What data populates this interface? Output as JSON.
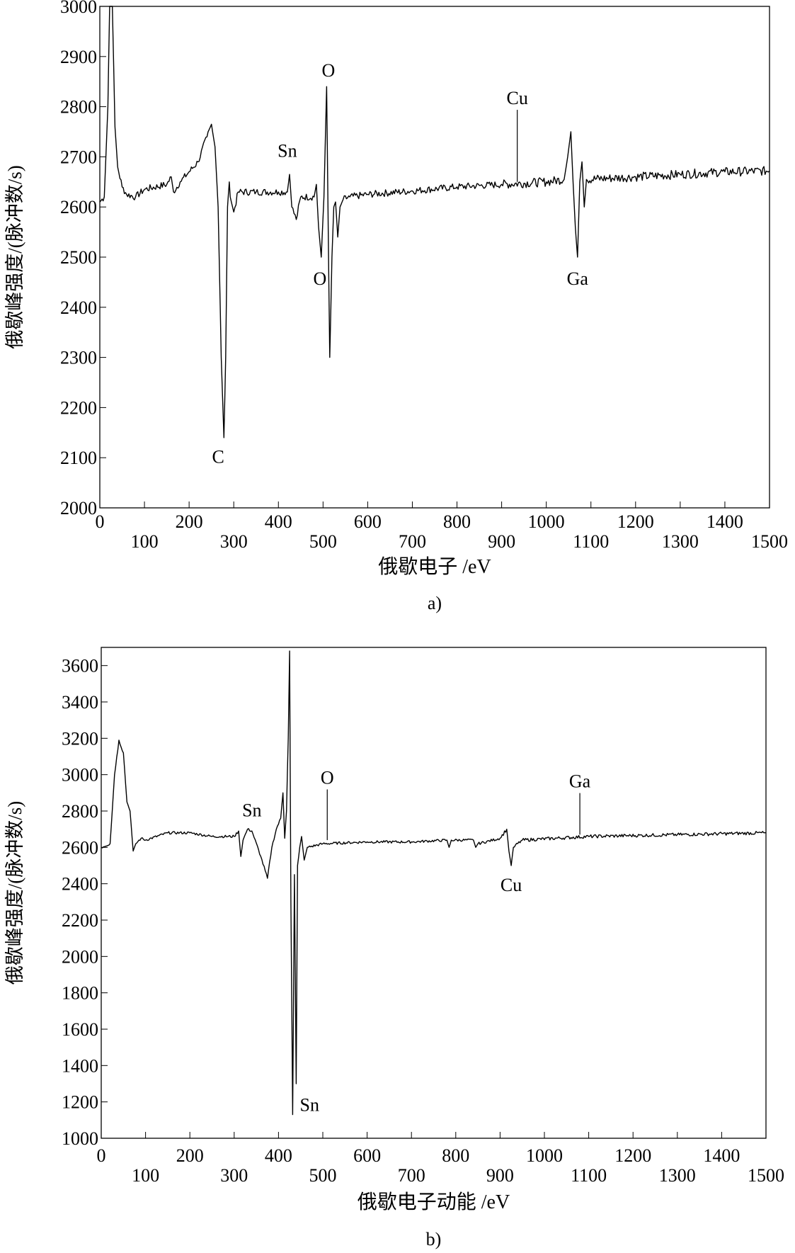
{
  "chart_data": [
    {
      "type": "line",
      "caption": "a)",
      "xlabel": "俄歇电子 /eV",
      "ylabel": "俄歇峰强度/(脉冲数/s)",
      "xlim": [
        0,
        1500
      ],
      "ylim": [
        2000,
        3000
      ],
      "xticks": [
        0,
        100,
        200,
        300,
        400,
        500,
        600,
        700,
        800,
        900,
        1000,
        1100,
        1200,
        1300,
        1400,
        1500
      ],
      "yticks": [
        2000,
        2100,
        2200,
        2300,
        2400,
        2500,
        2600,
        2700,
        2800,
        2900,
        3000
      ],
      "grid": false,
      "series": [
        {
          "x": [
            0,
            10,
            18,
            22,
            28,
            34,
            40,
            50,
            60,
            80,
            100,
            150,
            160,
            165,
            180,
            200,
            220,
            240,
            250,
            258,
            265,
            272,
            278,
            282,
            286,
            290,
            292,
            300,
            310,
            350,
            400,
            420,
            425,
            430,
            440,
            450,
            480,
            485,
            490,
            496,
            502,
            508,
            511,
            515,
            520,
            524,
            528,
            533,
            538,
            545,
            560,
            600,
            700,
            800,
            900,
            1000,
            1040,
            1048,
            1055,
            1060,
            1065,
            1070,
            1075,
            1080,
            1085,
            1090,
            1200,
            1300,
            1400,
            1500
          ],
          "y": [
            2610,
            2620,
            2800,
            3000,
            3000,
            2760,
            2680,
            2640,
            2625,
            2620,
            2635,
            2645,
            2660,
            2630,
            2650,
            2670,
            2690,
            2740,
            2765,
            2720,
            2600,
            2300,
            2140,
            2300,
            2600,
            2650,
            2620,
            2590,
            2630,
            2630,
            2630,
            2630,
            2665,
            2600,
            2575,
            2620,
            2620,
            2645,
            2560,
            2500,
            2620,
            2840,
            2600,
            2300,
            2500,
            2600,
            2610,
            2540,
            2600,
            2615,
            2620,
            2625,
            2632,
            2640,
            2645,
            2650,
            2655,
            2700,
            2750,
            2650,
            2560,
            2500,
            2650,
            2690,
            2600,
            2655,
            2660,
            2665,
            2670,
            2672
          ]
        }
      ],
      "annotations": [
        {
          "text": "C",
          "x": 265,
          "y": 2090
        },
        {
          "text": "Sn",
          "x": 420,
          "y": 2700
        },
        {
          "text": "O",
          "x": 512,
          "y": 2860
        },
        {
          "text": "O",
          "x": 493,
          "y": 2445
        },
        {
          "text": "Cu",
          "x": 935,
          "y": 2805,
          "line_to": 2650
        },
        {
          "text": "Ga",
          "x": 1070,
          "y": 2445
        }
      ]
    },
    {
      "type": "line",
      "caption": "b)",
      "xlabel": "俄歇电子动能 /eV",
      "ylabel": "俄歇峰强度/(脉冲数/s)",
      "xlim": [
        0,
        1500
      ],
      "ylim": [
        1000,
        3700
      ],
      "xticks": [
        0,
        100,
        200,
        300,
        400,
        500,
        600,
        700,
        800,
        900,
        1000,
        1100,
        1200,
        1300,
        1400,
        1500
      ],
      "yticks": [
        1000,
        1200,
        1400,
        1600,
        1800,
        2000,
        2200,
        2400,
        2600,
        2800,
        3000,
        3200,
        3400,
        3600
      ],
      "grid": false,
      "series": [
        {
          "x": [
            0,
            20,
            30,
            40,
            50,
            58,
            65,
            72,
            78,
            90,
            100,
            150,
            200,
            250,
            300,
            310,
            315,
            320,
            330,
            340,
            360,
            375,
            385,
            395,
            405,
            410,
            414,
            418,
            422,
            425,
            428,
            432,
            436,
            440,
            443,
            448,
            452,
            458,
            465,
            500,
            600,
            700,
            780,
            785,
            790,
            840,
            845,
            850,
            900,
            915,
            920,
            925,
            930,
            950,
            1100,
            1300,
            1500
          ],
          "y": [
            2600,
            2620,
            3000,
            3190,
            3120,
            2850,
            2800,
            2580,
            2620,
            2650,
            2640,
            2680,
            2680,
            2660,
            2660,
            2690,
            2550,
            2640,
            2700,
            2690,
            2550,
            2430,
            2600,
            2700,
            2760,
            2900,
            2650,
            2800,
            3200,
            3680,
            2300,
            1130,
            2450,
            1300,
            2500,
            2600,
            2660,
            2530,
            2600,
            2620,
            2630,
            2630,
            2640,
            2600,
            2640,
            2640,
            2600,
            2620,
            2650,
            2700,
            2580,
            2500,
            2600,
            2640,
            2660,
            2670,
            2680
          ]
        }
      ],
      "annotations": [
        {
          "text": "Sn",
          "x": 340,
          "y": 2770
        },
        {
          "text": "O",
          "x": 510,
          "y": 2950,
          "line_to": 2640
        },
        {
          "text": "Cu",
          "x": 925,
          "y": 2360
        },
        {
          "text": "Ga",
          "x": 1080,
          "y": 2930,
          "line_to": 2670
        },
        {
          "text": "Sn",
          "x": 470,
          "y": 1150
        }
      ]
    }
  ]
}
